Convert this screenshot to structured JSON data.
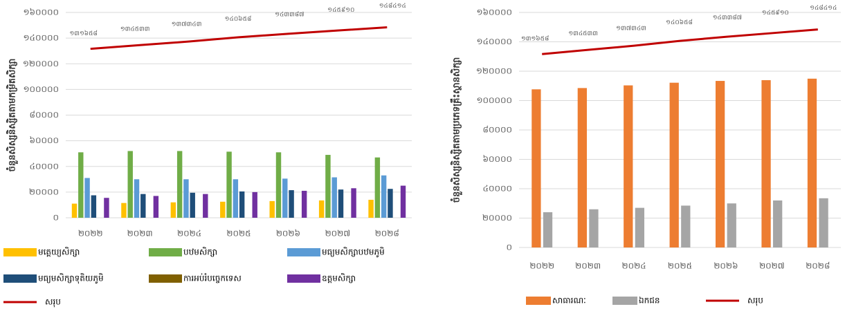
{
  "chart_data": [
    {
      "type": "bar",
      "y_label": "ចំនួនសិស្សនិស្សិតតាមកម្រិតសិក្សា",
      "categories": [
        "២០២២",
        "២០២៣",
        "២០២៤",
        "២០២៥",
        "២០២៦",
        "២០២៧",
        "២០២៨"
      ],
      "ylim": [
        0,
        160000
      ],
      "yticks": [
        {
          "value": 0,
          "label": "០"
        },
        {
          "value": 20000,
          "label": "២០០០០"
        },
        {
          "value": 40000,
          "label": "៤០០០០"
        },
        {
          "value": 60000,
          "label": "៦០០០០"
        },
        {
          "value": 80000,
          "label": "៨០០០០"
        },
        {
          "value": 100000,
          "label": "១០០០០០"
        },
        {
          "value": 120000,
          "label": "១២០០០០"
        },
        {
          "value": 140000,
          "label": "១៤០០០០"
        },
        {
          "value": 160000,
          "label": "១៦០០០០"
        }
      ],
      "grid": true,
      "series": [
        {
          "name": "មត្តេយ្យសិក្សា",
          "color": "#ffc000",
          "values": [
            11000,
            11500,
            12000,
            12500,
            13000,
            13500,
            14000
          ]
        },
        {
          "name": "បឋមសិក្សា",
          "color": "#70ad47",
          "values": [
            51000,
            52000,
            52000,
            51500,
            51000,
            49000,
            47000
          ]
        },
        {
          "name": "មធ្យមសិក្សាបឋមភូមិ",
          "color": "#5b9bd5",
          "values": [
            31000,
            30000,
            30000,
            30000,
            30500,
            31500,
            33000
          ]
        },
        {
          "name": "មធ្យមសិក្សាទុតិយភូមិ",
          "color": "#1f4e79",
          "values": [
            17500,
            18500,
            19500,
            20500,
            21500,
            22000,
            22500
          ]
        },
        {
          "name": "ការអប់រំបច្ចេកទេស",
          "color": "#806000",
          "values": [
            0,
            0,
            0,
            0,
            0,
            0,
            0
          ]
        },
        {
          "name": "ឧត្តមសិក្សា",
          "color": "#7030a0",
          "values": [
            15500,
            17000,
            18500,
            20000,
            21000,
            23000,
            25000
          ]
        },
        {
          "name": "សរុប",
          "color": "#c00000",
          "type": "line",
          "values": [
            131658,
            134533,
            137343,
            140658,
            143387,
            145910,
            148414
          ],
          "value_labels": [
            "១៣១៦៥៨",
            "១៣៤៥៣៣",
            "១៣៧៣៤៣",
            "១៤០៦៥៨",
            "១៤៣៣៨៧",
            "១៤៥៩១០",
            "១៤៨៤១៤"
          ]
        }
      ]
    },
    {
      "type": "bar",
      "y_label": "ចំនួនសិស្សនិស្សិតតាមប្រភេទគ្រឹះស្ថានសិក្សា",
      "categories": [
        "២០២២",
        "២០២៣",
        "២០២៤",
        "២០២៥",
        "២០២៦",
        "២០២៧",
        "២០២៨"
      ],
      "ylim": [
        0,
        160000
      ],
      "yticks": [
        {
          "value": 0,
          "label": "០"
        },
        {
          "value": 20000,
          "label": "២០០០០"
        },
        {
          "value": 40000,
          "label": "៤០០០០"
        },
        {
          "value": 60000,
          "label": "៦០០០០"
        },
        {
          "value": 80000,
          "label": "៨០០០០"
        },
        {
          "value": 100000,
          "label": "១០០០០០"
        },
        {
          "value": 120000,
          "label": "១២០០០០"
        },
        {
          "value": 140000,
          "label": "១៤០០០០"
        },
        {
          "value": 160000,
          "label": "១៦០០០០"
        }
      ],
      "grid": true,
      "series": [
        {
          "name": "សាធារណៈ",
          "color": "#ed7d31",
          "values": [
            107658,
            108533,
            110343,
            112158,
            113387,
            113910,
            114914
          ]
        },
        {
          "name": "ឯកជន",
          "color": "#a5a5a5",
          "values": [
            24000,
            26000,
            27000,
            28500,
            30000,
            32000,
            33500
          ]
        },
        {
          "name": "សរុប",
          "color": "#c00000",
          "type": "line",
          "values": [
            131658,
            134533,
            137343,
            140658,
            143387,
            145910,
            148414
          ],
          "value_labels": [
            "១៣១៦៥៨",
            "១៣៤៥៣៣",
            "១៣៧៣៤៣",
            "១៤០៦៥៨",
            "១៤៣៣៨៧",
            "១៤៥៩១០",
            "១៤៨៤១៤"
          ]
        }
      ]
    }
  ]
}
